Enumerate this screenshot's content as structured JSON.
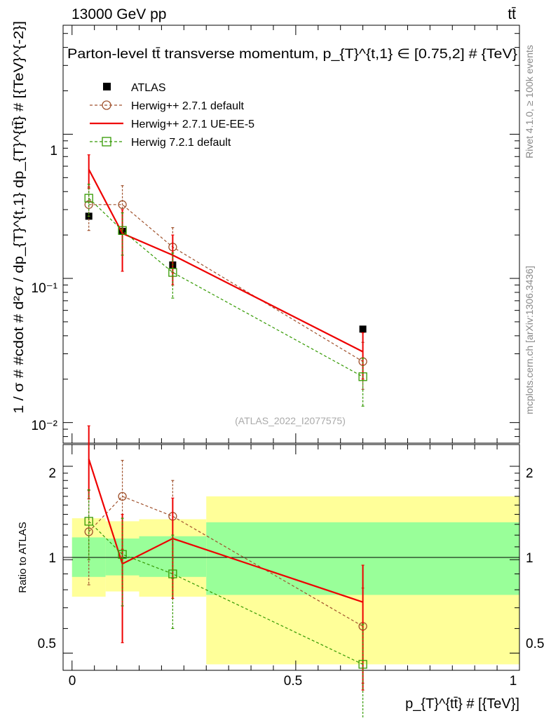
{
  "header": {
    "left": "13000 GeV pp",
    "right": "tt̄"
  },
  "side": {
    "rivet": "Rivet 4.1.0, ≥ 100k events",
    "mcplots": "mcplots.cern.ch [arXiv:1306.3436]"
  },
  "chart_data": {
    "type": "line",
    "title": "Parton-level tt̄ transverse momentum, p_{T}^{t,1} ∈ [0.75,2] # {TeV}",
    "analysis": "(ATLAS_2022_I2077575)",
    "xlabel": "p_{T}^{tt̄} # [{TeV}]",
    "ylabel_main": "1 / σ # #cdot # d²σ / dp_{T}^{t,1} dp_{T}^{tt̄} # [{TeV}^{-2}]",
    "ylabel_ratio": "Ratio to ATLAS",
    "x_range": [
      -0.02,
      1.0
    ],
    "y_range_main": [
      0.0072,
      5.7
    ],
    "y_range_ratio": [
      0.44,
      2.35
    ],
    "x_ticks": [
      "0",
      "0.5",
      "1"
    ],
    "y_ticks_main": [
      "1",
      "10⁻¹",
      "10⁻²"
    ],
    "y_ticks_ratio": [
      "0.5",
      "1",
      "2"
    ],
    "x": [
      0.0375,
      0.1125,
      0.225,
      0.65
    ],
    "bin_edges": [
      0.0,
      0.075,
      0.15,
      0.3,
      1.0
    ],
    "legend": [
      "ATLAS",
      "Herwig++ 2.7.1 default",
      "Herwig++ 2.7.1 UE-EE-5",
      "Herwig 7.2.1 default"
    ],
    "data": {
      "name": "ATLAS",
      "values": [
        0.27,
        0.212,
        0.124,
        0.0445
      ],
      "stat_band": [
        [
          0.88,
          1.18
        ],
        [
          0.89,
          1.17
        ],
        [
          0.88,
          1.19
        ],
        [
          0.77,
          1.32
        ]
      ],
      "total_band": [
        [
          0.76,
          1.36
        ],
        [
          0.79,
          1.33
        ],
        [
          0.76,
          1.35
        ],
        [
          0.46,
          1.6
        ]
      ]
    },
    "series": [
      {
        "name": "Herwig++ 2.7.1 default",
        "color": "#a0522d",
        "style": "dashed",
        "marker": "circle",
        "values": [
          0.325,
          0.325,
          0.165,
          0.0265
        ],
        "err_lo": [
          0.215,
          0.22,
          0.11,
          0.017
        ],
        "err_hi": [
          0.43,
          0.44,
          0.225,
          0.036
        ],
        "ratio": [
          1.23,
          1.6,
          1.38,
          0.61
        ],
        "ratio_lo": [
          0.83,
          1.08,
          0.87,
          0.4
        ],
        "ratio_hi": [
          1.67,
          2.09,
          1.8,
          0.81
        ]
      },
      {
        "name": "Herwig++ 2.7.1 UE-EE-5",
        "color": "#ee0000",
        "style": "solid",
        "marker": "none",
        "values": [
          0.57,
          0.205,
          0.145,
          0.031
        ],
        "err_lo": [
          0.42,
          0.112,
          0.09,
          0.02
        ],
        "err_hi": [
          0.72,
          0.3,
          0.2,
          0.042
        ],
        "ratio": [
          2.11,
          0.97,
          1.17,
          0.73
        ],
        "ratio_lo": [
          1.57,
          0.54,
          0.75,
          0.38
        ],
        "ratio_hi": [
          2.7,
          1.4,
          1.58,
          0.96
        ]
      },
      {
        "name": "Herwig 7.2.1 default",
        "color": "#339900",
        "style": "dashed",
        "marker": "square",
        "values": [
          0.36,
          0.215,
          0.11,
          0.0208
        ],
        "err_lo": [
          0.27,
          0.145,
          0.073,
          0.013
        ],
        "err_hi": [
          0.45,
          0.285,
          0.15,
          0.028
        ],
        "ratio": [
          1.33,
          1.04,
          0.9,
          0.46
        ],
        "ratio_lo": [
          1.0,
          0.71,
          0.6,
          0.3
        ],
        "ratio_hi": [
          1.68,
          1.36,
          1.2,
          0.62
        ]
      }
    ],
    "colors": {
      "data": "#000000",
      "stat_band": "#99ff99",
      "total_band": "#ffff99"
    }
  }
}
